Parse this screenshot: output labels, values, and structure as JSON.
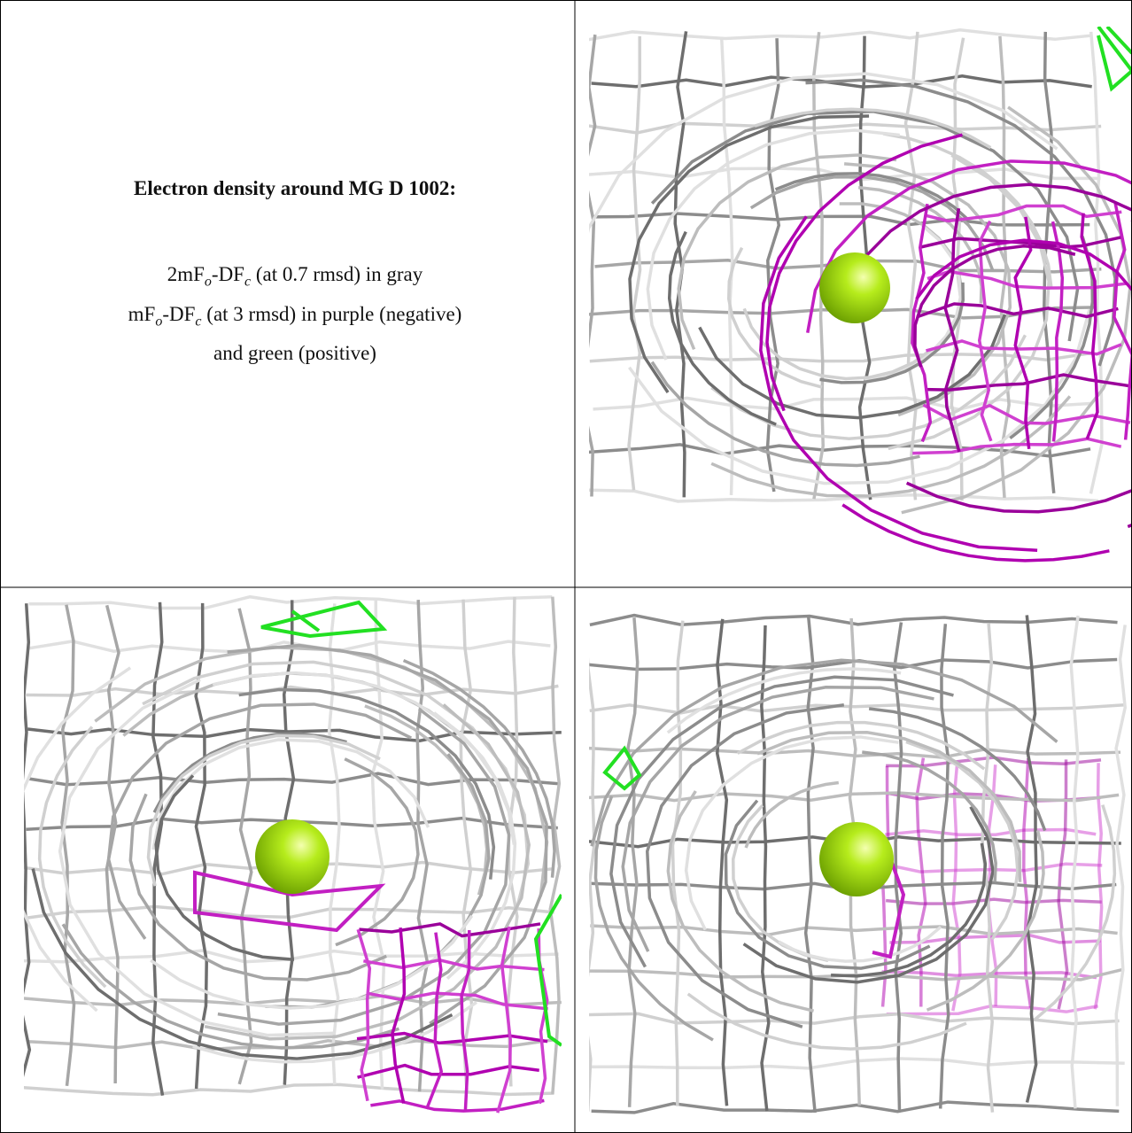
{
  "caption": {
    "title": "Electron density around MG D 1002:",
    "lines": [
      [
        "2mF",
        "o",
        "-DF",
        "c",
        " (at 0.7 rmsd) in gray"
      ],
      [
        "mF",
        "o",
        "-DF",
        "c",
        " (at 3 rmsd) in purple (negative)"
      ],
      [
        "and green (positive)"
      ]
    ]
  }
}
